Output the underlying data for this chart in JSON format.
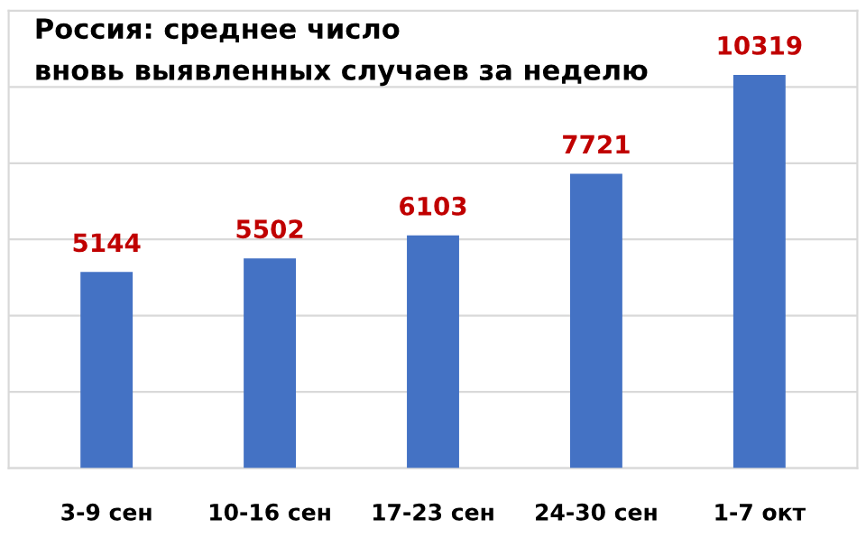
{
  "chart_data": {
    "type": "bar",
    "title": "Россия: среднее число\nвновь выявленных случаев за неделю",
    "categories": [
      "3-9 сен",
      "10-16 сен",
      "17-23 сен",
      "24-30 сен",
      "1-7 окт"
    ],
    "values": [
      5144,
      5502,
      6103,
      7721,
      10319
    ],
    "color": "#4472c4",
    "data_labels": true,
    "ylim": [
      0,
      12000
    ],
    "yticks": [
      {
        "value": 0,
        "label": null
      },
      {
        "value": 2000,
        "label": null
      },
      {
        "value": 4000,
        "label": null
      },
      {
        "value": 6000,
        "label": null
      },
      {
        "value": 8000,
        "label": null
      },
      {
        "value": 10000,
        "label": null
      }
    ],
    "grid": "y",
    "tick_labels": "x"
  }
}
